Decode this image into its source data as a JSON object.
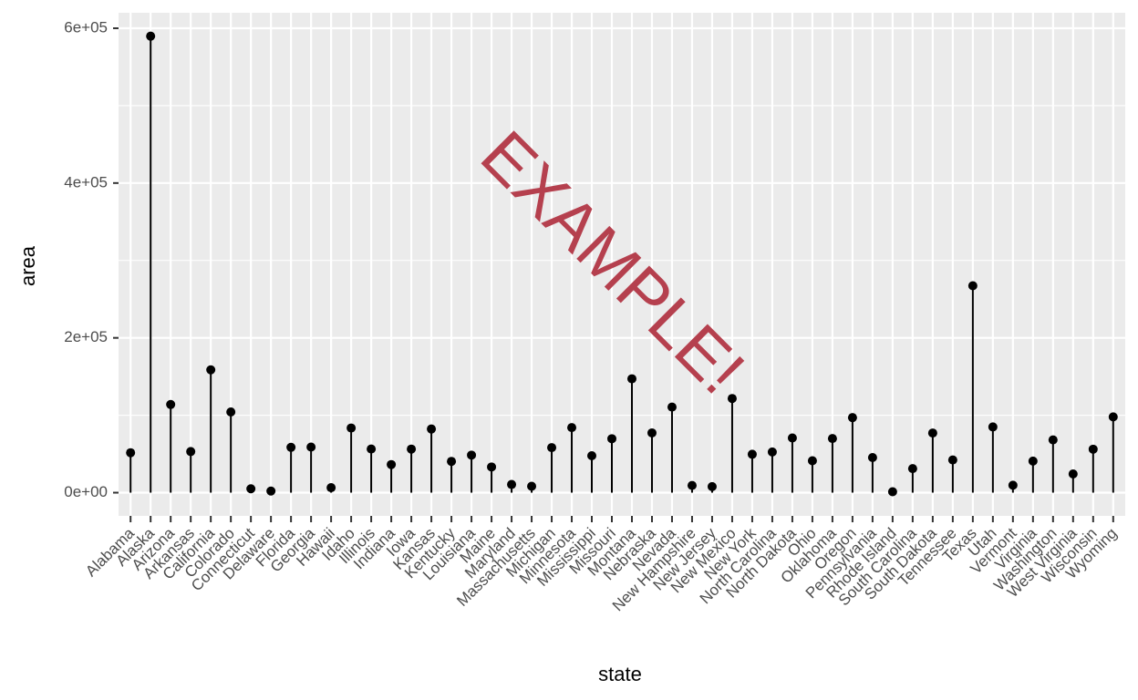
{
  "chart_data": {
    "type": "lollipop",
    "title": "",
    "xlabel": "state",
    "ylabel": "area",
    "ylim": [
      -30000,
      620000
    ],
    "yticks": [
      0,
      200000,
      400000,
      600000
    ],
    "ytick_labels": [
      "0e+00",
      "2e+05",
      "4e+05",
      "6e+05"
    ],
    "grid": true,
    "legend": "none",
    "categories": [
      "Alabama",
      "Alaska",
      "Arizona",
      "Arkansas",
      "California",
      "Colorado",
      "Connecticut",
      "Delaware",
      "Florida",
      "Georgia",
      "Hawaii",
      "Idaho",
      "Illinois",
      "Indiana",
      "Iowa",
      "Kansas",
      "Kentucky",
      "Louisiana",
      "Maine",
      "Maryland",
      "Massachusetts",
      "Michigan",
      "Minnesota",
      "Mississippi",
      "Missouri",
      "Montana",
      "Nebraska",
      "Nevada",
      "New Hampshire",
      "New Jersey",
      "New Mexico",
      "New York",
      "North Carolina",
      "North Dakota",
      "Ohio",
      "Oklahoma",
      "Oregon",
      "Pennsylvania",
      "Rhode Island",
      "South Carolina",
      "South Dakota",
      "Tennessee",
      "Texas",
      "Utah",
      "Vermont",
      "Virginia",
      "Washington",
      "West Virginia",
      "Wisconsin",
      "Wyoming"
    ],
    "values": [
      51609,
      589757,
      113909,
      53104,
      158693,
      104247,
      5009,
      2057,
      58560,
      58876,
      6450,
      83557,
      56400,
      36291,
      56290,
      82264,
      40395,
      48523,
      33215,
      10577,
      8257,
      58216,
      84068,
      47716,
      69686,
      147138,
      77227,
      110540,
      9304,
      7836,
      121666,
      49576,
      52586,
      70665,
      41222,
      69919,
      96981,
      45333,
      1214,
      31055,
      77047,
      42244,
      267339,
      84916,
      9609,
      40815,
      68192,
      24181,
      56154,
      97914
    ],
    "colors": {
      "panel": "#ebebeb",
      "grid": "#ffffff",
      "marks": "#000000",
      "axis_text": "#4d4d4d"
    }
  },
  "watermark": {
    "text": "EXAMPLE!",
    "color": "#b5404e"
  }
}
